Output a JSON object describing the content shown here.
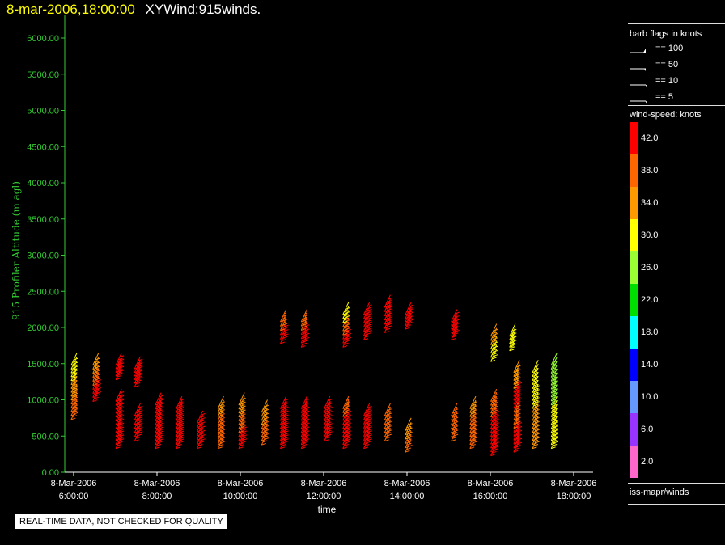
{
  "title": {
    "datetime": "8-mar-2006,18:00:00",
    "name": "XYWind:915winds."
  },
  "footer_note": "REAL-TIME DATA, NOT CHECKED FOR QUALITY",
  "legend": {
    "barb_title": "barb flags in knots",
    "barbs": [
      {
        "label": "== 100",
        "knots": 100
      },
      {
        "label": "== 50",
        "knots": 50
      },
      {
        "label": "== 10",
        "knots": 10
      },
      {
        "label": "== 5",
        "knots": 5
      }
    ],
    "speed_title": "wind-speed: knots",
    "colorbar": [
      {
        "label": "42.0",
        "color": "#ff0000"
      },
      {
        "label": "38.0",
        "color": "#ff6600"
      },
      {
        "label": "34.0",
        "color": "#ff9900"
      },
      {
        "label": "30.0",
        "color": "#ffff00"
      },
      {
        "label": "26.0",
        "color": "#99ff33"
      },
      {
        "label": "22.0",
        "color": "#00dd00"
      },
      {
        "label": "18.0",
        "color": "#00ffff"
      },
      {
        "label": "14.0",
        "color": "#0000ff"
      },
      {
        "label": "10.0",
        "color": "#6699ff"
      },
      {
        "label": "6.0",
        "color": "#9933ff"
      },
      {
        "label": "2.0",
        "color": "#ff66cc"
      }
    ],
    "source": "iss-mapr/winds"
  },
  "colors": {
    "axis": "#33cc33",
    "axis_label": "#33cc33",
    "text": "#ffffff"
  },
  "chart_data": {
    "type": "scatter",
    "ylabel": "915 Profiler Altitude (m agl)",
    "xlabel": "time",
    "ylim": [
      0,
      6200
    ],
    "xlim_hours": [
      5.83,
      18.25
    ],
    "y_ticks": [
      "0.00",
      "500.00",
      "1000.00",
      "1500.00",
      "2000.00",
      "2500.00",
      "3000.00",
      "3500.00",
      "4000.00",
      "4500.00",
      "5000.00",
      "5500.00",
      "6000.00"
    ],
    "x_ticks": [
      {
        "hour": 6,
        "date": "8-Mar-2006",
        "time": "6:00:00"
      },
      {
        "hour": 8,
        "date": "8-Mar-2006",
        "time": "8:00:00"
      },
      {
        "hour": 10,
        "date": "8-Mar-2006",
        "time": "10:00:00"
      },
      {
        "hour": 12,
        "date": "8-Mar-2006",
        "time": "12:00:00"
      },
      {
        "hour": 14,
        "date": "8-Mar-2006",
        "time": "14:00:00"
      },
      {
        "hour": 16,
        "date": "8-Mar-2006",
        "time": "16:00:00"
      },
      {
        "hour": 18,
        "date": "8-Mar-2006",
        "time": "18:00:00"
      }
    ],
    "barb_direction_deg": 205,
    "profiles": [
      {
        "hour": 6.08,
        "segments": [
          {
            "from": 900,
            "to": 1650,
            "speed": [
              36,
              34,
              30
            ]
          }
        ]
      },
      {
        "hour": 6.6,
        "segments": [
          {
            "from": 1150,
            "to": 1650,
            "speed": [
              40,
              36,
              32
            ]
          }
        ]
      },
      {
        "hour": 7.15,
        "segments": [
          {
            "from": 1450,
            "to": 1650,
            "speed": [
              42,
              40
            ]
          },
          {
            "from": 500,
            "to": 1150,
            "speed": [
              42,
              42,
              40
            ]
          }
        ]
      },
      {
        "hour": 7.6,
        "segments": [
          {
            "from": 1350,
            "to": 1600,
            "speed": [
              42,
              42
            ]
          },
          {
            "from": 600,
            "to": 950,
            "speed": [
              42,
              40
            ]
          }
        ]
      },
      {
        "hour": 8.1,
        "segments": [
          {
            "from": 500,
            "to": 1100,
            "speed": [
              42,
              42,
              40
            ]
          }
        ]
      },
      {
        "hour": 8.6,
        "segments": [
          {
            "from": 500,
            "to": 1050,
            "speed": [
              42,
              42,
              40
            ]
          }
        ]
      },
      {
        "hour": 9.1,
        "segments": [
          {
            "from": 500,
            "to": 850,
            "speed": [
              42,
              42
            ]
          }
        ]
      },
      {
        "hour": 9.6,
        "segments": [
          {
            "from": 500,
            "to": 1050,
            "speed": [
              38,
              36,
              34
            ]
          }
        ]
      },
      {
        "hour": 10.1,
        "segments": [
          {
            "from": 500,
            "to": 1100,
            "speed": [
              40,
              36,
              34
            ]
          }
        ]
      },
      {
        "hour": 10.65,
        "segments": [
          {
            "from": 550,
            "to": 1000,
            "speed": [
              36,
              34
            ]
          }
        ]
      },
      {
        "hour": 11.1,
        "segments": [
          {
            "from": 1950,
            "to": 2250,
            "speed": [
              42,
              38
            ]
          },
          {
            "from": 500,
            "to": 1050,
            "speed": [
              42,
              42,
              40
            ]
          }
        ]
      },
      {
        "hour": 11.6,
        "segments": [
          {
            "from": 1900,
            "to": 2250,
            "speed": [
              42,
              38
            ]
          },
          {
            "from": 500,
            "to": 1050,
            "speed": [
              42,
              42,
              40
            ]
          }
        ]
      },
      {
        "hour": 12.15,
        "segments": [
          {
            "from": 600,
            "to": 1050,
            "speed": [
              42,
              40
            ]
          }
        ]
      },
      {
        "hour": 12.6,
        "segments": [
          {
            "from": 1900,
            "to": 2350,
            "speed": [
              42,
              36,
              30
            ]
          },
          {
            "from": 500,
            "to": 1050,
            "speed": [
              42,
              42,
              38
            ]
          }
        ]
      },
      {
        "hour": 13.1,
        "segments": [
          {
            "from": 2000,
            "to": 2350,
            "speed": [
              42,
              42
            ]
          },
          {
            "from": 500,
            "to": 950,
            "speed": [
              42,
              40
            ]
          }
        ]
      },
      {
        "hour": 13.6,
        "segments": [
          {
            "from": 2100,
            "to": 2450,
            "speed": [
              42,
              40
            ]
          },
          {
            "from": 600,
            "to": 950,
            "speed": [
              38,
              36
            ]
          }
        ]
      },
      {
        "hour": 14.1,
        "segments": [
          {
            "from": 2150,
            "to": 2350,
            "speed": [
              42
            ]
          },
          {
            "from": 450,
            "to": 750,
            "speed": [
              36,
              34
            ]
          }
        ]
      },
      {
        "hour": 15.2,
        "segments": [
          {
            "from": 2000,
            "to": 2250,
            "speed": [
              42,
              40
            ]
          },
          {
            "from": 600,
            "to": 950,
            "speed": [
              38,
              36
            ]
          }
        ]
      },
      {
        "hour": 15.65,
        "segments": [
          {
            "from": 500,
            "to": 1050,
            "speed": [
              38,
              36,
              34
            ]
          }
        ]
      },
      {
        "hour": 16.15,
        "segments": [
          {
            "from": 1700,
            "to": 2050,
            "speed": [
              30,
              34
            ]
          },
          {
            "from": 400,
            "to": 1150,
            "speed": [
              42,
              42,
              38
            ]
          }
        ]
      },
      {
        "hour": 16.6,
        "segments": [
          {
            "from": 1850,
            "to": 2050,
            "speed": [
              30
            ]
          }
        ]
      },
      {
        "hour": 16.7,
        "segments": [
          {
            "from": 450,
            "to": 1550,
            "speed": [
              40,
              36,
              42,
              34
            ]
          }
        ]
      },
      {
        "hour": 17.15,
        "segments": [
          {
            "from": 500,
            "to": 1550,
            "speed": [
              34,
              32,
              30,
              28
            ]
          }
        ]
      },
      {
        "hour": 17.6,
        "segments": [
          {
            "from": 500,
            "to": 1650,
            "speed": [
              30,
              28,
              26,
              24
            ]
          }
        ]
      }
    ]
  }
}
